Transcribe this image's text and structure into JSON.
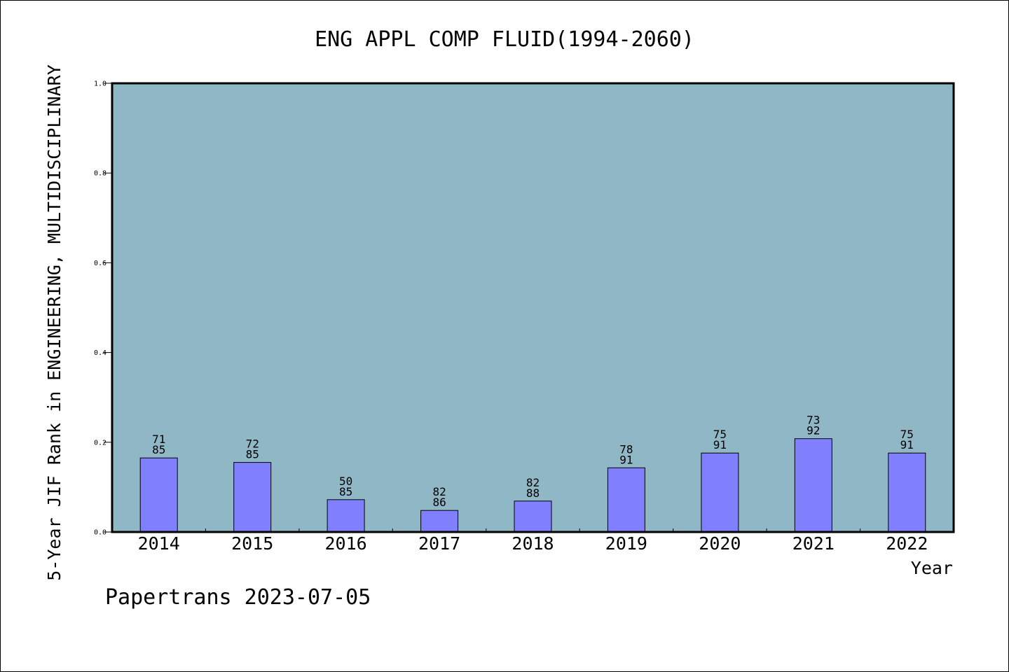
{
  "chart_data": {
    "type": "bar",
    "title": "ENG APPL COMP FLUID(1994-2060)",
    "xlabel": "Year",
    "ylabel": "5-Year JIF Rank in ENGINEERING, MULTIDISCIPLINARY",
    "ylim": [
      0,
      1.0
    ],
    "yticks": [
      "0.0",
      "0.2",
      "0.4",
      "0.6",
      "0.8",
      "1.0"
    ],
    "categories": [
      "2014",
      "2015",
      "2016",
      "2017",
      "2018",
      "2019",
      "2020",
      "2021",
      "2022"
    ],
    "values": [
      0.165,
      0.155,
      0.072,
      0.048,
      0.069,
      0.143,
      0.176,
      0.208,
      0.176
    ],
    "label_top": [
      "71",
      "72",
      "50",
      "82",
      "82",
      "78",
      "75",
      "73",
      "75"
    ],
    "label_bottom": [
      "85",
      "85",
      "85",
      "86",
      "88",
      "91",
      "91",
      "92",
      "91"
    ],
    "grid": false,
    "colors": {
      "plot_background": "#8fb7c5",
      "bar_fill": "#8080ff",
      "axis": "#000000"
    }
  },
  "footer": {
    "text": "Papertrans 2023-07-05"
  }
}
